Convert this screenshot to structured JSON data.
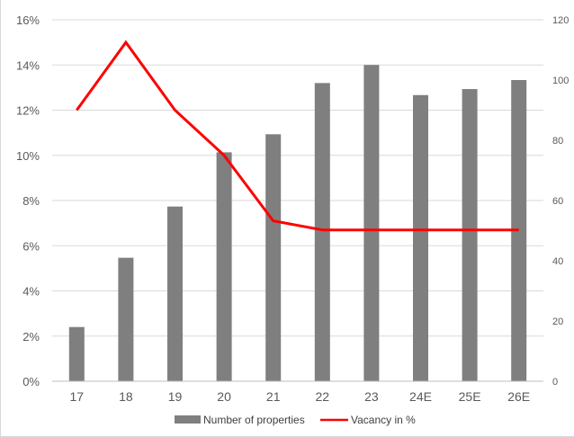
{
  "chart_data": {
    "type": "bar",
    "title": "",
    "categories": [
      "17",
      "18",
      "19",
      "20",
      "21",
      "22",
      "23",
      "24E",
      "25E",
      "26E"
    ],
    "series": [
      {
        "name": "Number of properties",
        "type": "bar",
        "axis": "right",
        "color": "#7f7f7f",
        "values": [
          18,
          41,
          58,
          76,
          82,
          99,
          105,
          95,
          97,
          100
        ]
      },
      {
        "name": "Vacancy in %",
        "type": "line",
        "axis": "left",
        "color": "#ff0000",
        "values": [
          12.0,
          15.0,
          12.0,
          10.0,
          7.1,
          6.7,
          6.7,
          6.7,
          6.7,
          6.7
        ]
      }
    ],
    "y_left": {
      "min": 0,
      "max": 16,
      "step": 2,
      "format": "percent"
    },
    "y_right": {
      "min": 0,
      "max": 120,
      "step": 20
    },
    "grid": true,
    "legend_position": "bottom"
  }
}
